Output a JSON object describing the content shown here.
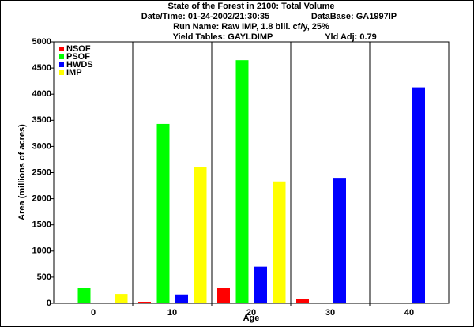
{
  "chart_data": {
    "type": "bar",
    "title_lines": [
      [
        "State of the Forest in 2100: Total Volume"
      ],
      [
        "Date/Time: 01-24-2002/21:30:35",
        "DataBase: GA1997IP"
      ],
      [
        "Run Name: Raw IMP, 1.8 bill. cf/y, 25%"
      ],
      [
        "Yield Tables: GAYLDIMP",
        "Yld Adj: 0.79"
      ]
    ],
    "x_label": "Age",
    "y_label": "Area (millions of acres)",
    "categories": [
      "0",
      "10",
      "20",
      "30",
      "40"
    ],
    "series": [
      {
        "name": "NSOF",
        "color": "#ff0000",
        "values": [
          0,
          30,
          290,
          90,
          0
        ]
      },
      {
        "name": "PSOF",
        "color": "#00ff00",
        "values": [
          300,
          3430,
          4650,
          0,
          0
        ]
      },
      {
        "name": "HWDS",
        "color": "#0000ff",
        "values": [
          0,
          170,
          700,
          2400,
          4130
        ]
      },
      {
        "name": "IMP",
        "color": "#ffff00",
        "values": [
          180,
          2600,
          2330,
          0,
          0
        ]
      }
    ],
    "ylim": [
      0,
      5000
    ],
    "yticks": [
      0,
      500,
      1000,
      1500,
      2000,
      2500,
      3000,
      3500,
      4000,
      4500,
      5000
    ],
    "legend": "top-left"
  }
}
